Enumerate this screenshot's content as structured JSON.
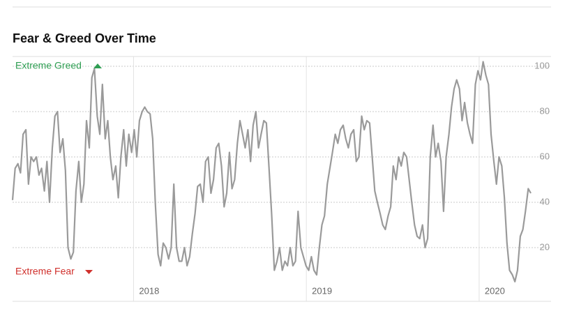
{
  "chart_data": {
    "type": "line",
    "title": "Fear & Greed Over Time",
    "annotations": [
      {
        "text": "Extreme Greed",
        "color": "#2e9e52"
      },
      {
        "text": "Extreme Fear",
        "color": "#d0312d"
      }
    ],
    "x": [
      2017.3,
      2017.315,
      2017.331,
      2017.346,
      2017.361,
      2017.377,
      2017.392,
      2017.407,
      2017.422,
      2017.438,
      2017.453,
      2017.468,
      2017.484,
      2017.499,
      2017.514,
      2017.53,
      2017.545,
      2017.56,
      2017.575,
      2017.591,
      2017.606,
      2017.621,
      2017.637,
      2017.652,
      2017.667,
      2017.683,
      2017.698,
      2017.713,
      2017.728,
      2017.744,
      2017.759,
      2017.774,
      2017.79,
      2017.805,
      2017.82,
      2017.836,
      2017.851,
      2017.866,
      2017.881,
      2017.897,
      2017.912,
      2017.927,
      2017.943,
      2017.958,
      2017.973,
      2017.989,
      2018.004,
      2018.019,
      2018.034,
      2018.05,
      2018.065,
      2018.08,
      2018.096,
      2018.111,
      2018.126,
      2018.142,
      2018.157,
      2018.172,
      2018.187,
      2018.203,
      2018.218,
      2018.233,
      2018.249,
      2018.264,
      2018.279,
      2018.295,
      2018.31,
      2018.325,
      2018.34,
      2018.356,
      2018.371,
      2018.386,
      2018.402,
      2018.417,
      2018.432,
      2018.448,
      2018.463,
      2018.478,
      2018.493,
      2018.509,
      2018.524,
      2018.539,
      2018.555,
      2018.57,
      2018.585,
      2018.601,
      2018.616,
      2018.631,
      2018.646,
      2018.662,
      2018.677,
      2018.692,
      2018.708,
      2018.723,
      2018.738,
      2018.754,
      2018.769,
      2018.784,
      2018.799,
      2018.815,
      2018.83,
      2018.845,
      2018.861,
      2018.876,
      2018.891,
      2018.907,
      2018.922,
      2018.937,
      2018.952,
      2018.968,
      2018.983,
      2018.998,
      2019.014,
      2019.029,
      2019.044,
      2019.06,
      2019.075,
      2019.09,
      2019.105,
      2019.121,
      2019.136,
      2019.151,
      2019.167,
      2019.182,
      2019.197,
      2019.213,
      2019.228,
      2019.243,
      2019.258,
      2019.274,
      2019.289,
      2019.304,
      2019.32,
      2019.335,
      2019.35,
      2019.366,
      2019.381,
      2019.396,
      2019.411,
      2019.427,
      2019.442,
      2019.457,
      2019.473,
      2019.488,
      2019.503,
      2019.519,
      2019.534,
      2019.549,
      2019.564,
      2019.58,
      2019.595,
      2019.61,
      2019.626,
      2019.641,
      2019.656,
      2019.672,
      2019.687,
      2019.702,
      2019.717,
      2019.733,
      2019.748,
      2019.763,
      2019.779,
      2019.794,
      2019.809,
      2019.825,
      2019.84,
      2019.855,
      2019.87,
      2019.886,
      2019.901,
      2019.916,
      2019.932,
      2019.947,
      2019.962,
      2019.978,
      2019.993,
      2020.008,
      2020.023,
      2020.039,
      2020.054,
      2020.069,
      2020.085,
      2020.1,
      2020.115,
      2020.131,
      2020.146,
      2020.161,
      2020.176,
      2020.192,
      2020.207,
      2020.222,
      2020.238,
      2020.253,
      2020.268,
      2020.284,
      2020.299
    ],
    "values": [
      41,
      55,
      57,
      53,
      70,
      72,
      48,
      60,
      58,
      60,
      52,
      55,
      45,
      58,
      40,
      64,
      78,
      80,
      62,
      68,
      54,
      20,
      15,
      18,
      45,
      58,
      40,
      48,
      76,
      64,
      95,
      99,
      78,
      70,
      92,
      68,
      76,
      60,
      50,
      56,
      42,
      60,
      72,
      56,
      70,
      62,
      72,
      60,
      76,
      80,
      82,
      80,
      79,
      68,
      40,
      17,
      12,
      22,
      20,
      15,
      20,
      48,
      20,
      14,
      14,
      20,
      12,
      16,
      26,
      35,
      47,
      48,
      40,
      58,
      60,
      44,
      50,
      64,
      66,
      56,
      38,
      44,
      62,
      46,
      50,
      66,
      76,
      70,
      64,
      72,
      58,
      74,
      80,
      64,
      70,
      76,
      75,
      55,
      35,
      10,
      14,
      20,
      10,
      14,
      12,
      20,
      12,
      14,
      36,
      20,
      16,
      12,
      10,
      16,
      10,
      8,
      20,
      30,
      34,
      48,
      55,
      62,
      70,
      66,
      72,
      74,
      68,
      64,
      70,
      72,
      58,
      60,
      78,
      72,
      76,
      75,
      60,
      45,
      40,
      35,
      30,
      28,
      34,
      38,
      56,
      50,
      60,
      56,
      62,
      60,
      50,
      40,
      30,
      25,
      24,
      30,
      20,
      24,
      60,
      74,
      60,
      66,
      58,
      36,
      60,
      70,
      82,
      90,
      94,
      90,
      76,
      84,
      75,
      70,
      66,
      92,
      98,
      94,
      102,
      96,
      92,
      70,
      58,
      48,
      60,
      56,
      42,
      22,
      10,
      8,
      5,
      10,
      25,
      28,
      36,
      46,
      44
    ],
    "color": "#9a9a9a",
    "xlim": [
      2017.3,
      2020.416
    ],
    "xticks": [
      2018,
      2019,
      2020
    ],
    "ylim": [
      0,
      104
    ],
    "yticks": [
      20,
      40,
      60,
      80,
      100
    ],
    "grid": true
  }
}
